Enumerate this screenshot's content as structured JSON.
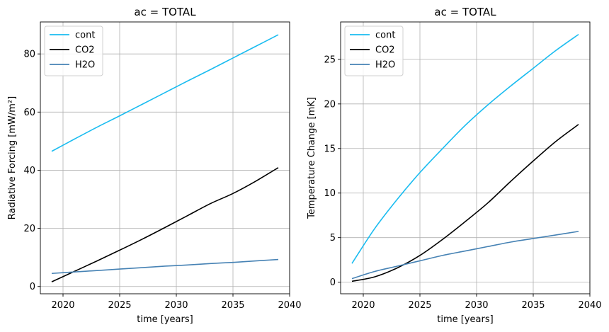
{
  "chart_data": [
    {
      "type": "line",
      "title": "ac = TOTAL",
      "xlabel": "time [years]",
      "ylabel": "Radiative Forcing [mW/m²]",
      "xlim": [
        2018,
        2040
      ],
      "ylim": [
        -2.5,
        91
      ],
      "xticks": [
        2020,
        2025,
        2030,
        2035,
        2040
      ],
      "yticks": [
        0,
        20,
        40,
        60,
        80
      ],
      "grid": true,
      "legend": "top-left",
      "series": [
        {
          "name": "cont",
          "color": "#1abcf0",
          "x": [
            2019,
            2021,
            2023,
            2025,
            2027,
            2029,
            2031,
            2033,
            2035,
            2037,
            2039
          ],
          "y": [
            46.5,
            50.7,
            54.8,
            58.7,
            62.7,
            66.7,
            70.7,
            74.6,
            78.6,
            82.6,
            86.6
          ]
        },
        {
          "name": "CO2",
          "color": "#000000",
          "x": [
            2019,
            2021,
            2023,
            2025,
            2027,
            2029,
            2031,
            2033,
            2035,
            2037,
            2039
          ],
          "y": [
            1.6,
            5.2,
            8.8,
            12.5,
            16.3,
            20.3,
            24.4,
            28.5,
            32.0,
            36.2,
            40.9
          ]
        },
        {
          "name": "H2O",
          "color": "#4682b4",
          "x": [
            2019,
            2021,
            2023,
            2025,
            2027,
            2029,
            2031,
            2033,
            2035,
            2037,
            2039
          ],
          "y": [
            4.5,
            5.0,
            5.5,
            6.0,
            6.5,
            7.0,
            7.4,
            7.9,
            8.3,
            8.8,
            9.3
          ]
        }
      ]
    },
    {
      "type": "line",
      "title": "ac = TOTAL",
      "xlabel": "time [years]",
      "ylabel": "Temperature Change [mK]",
      "xlim": [
        2018,
        2040
      ],
      "ylim": [
        -1.3,
        29.2
      ],
      "xticks": [
        2020,
        2025,
        2030,
        2035,
        2040
      ],
      "yticks": [
        0,
        5,
        10,
        15,
        20,
        25
      ],
      "grid": true,
      "legend": "top-left",
      "series": [
        {
          "name": "cont",
          "color": "#1abcf0",
          "x": [
            2019,
            2021,
            2023,
            2025,
            2027,
            2029,
            2031,
            2033,
            2035,
            2037,
            2039
          ],
          "y": [
            2.1,
            6.0,
            9.3,
            12.3,
            15.0,
            17.6,
            19.9,
            22.0,
            24.0,
            26.0,
            27.8
          ]
        },
        {
          "name": "CO2",
          "color": "#000000",
          "x": [
            2019,
            2021,
            2023,
            2025,
            2027,
            2029,
            2031,
            2033,
            2035,
            2037,
            2039
          ],
          "y": [
            0.1,
            0.6,
            1.6,
            3.0,
            4.8,
            6.8,
            8.9,
            11.3,
            13.6,
            15.8,
            17.7
          ]
        },
        {
          "name": "H2O",
          "color": "#4682b4",
          "x": [
            2019,
            2021,
            2023,
            2025,
            2027,
            2029,
            2031,
            2033,
            2035,
            2037,
            2039
          ],
          "y": [
            0.4,
            1.2,
            1.8,
            2.4,
            3.0,
            3.5,
            4.0,
            4.5,
            4.9,
            5.3,
            5.7
          ]
        }
      ]
    }
  ]
}
